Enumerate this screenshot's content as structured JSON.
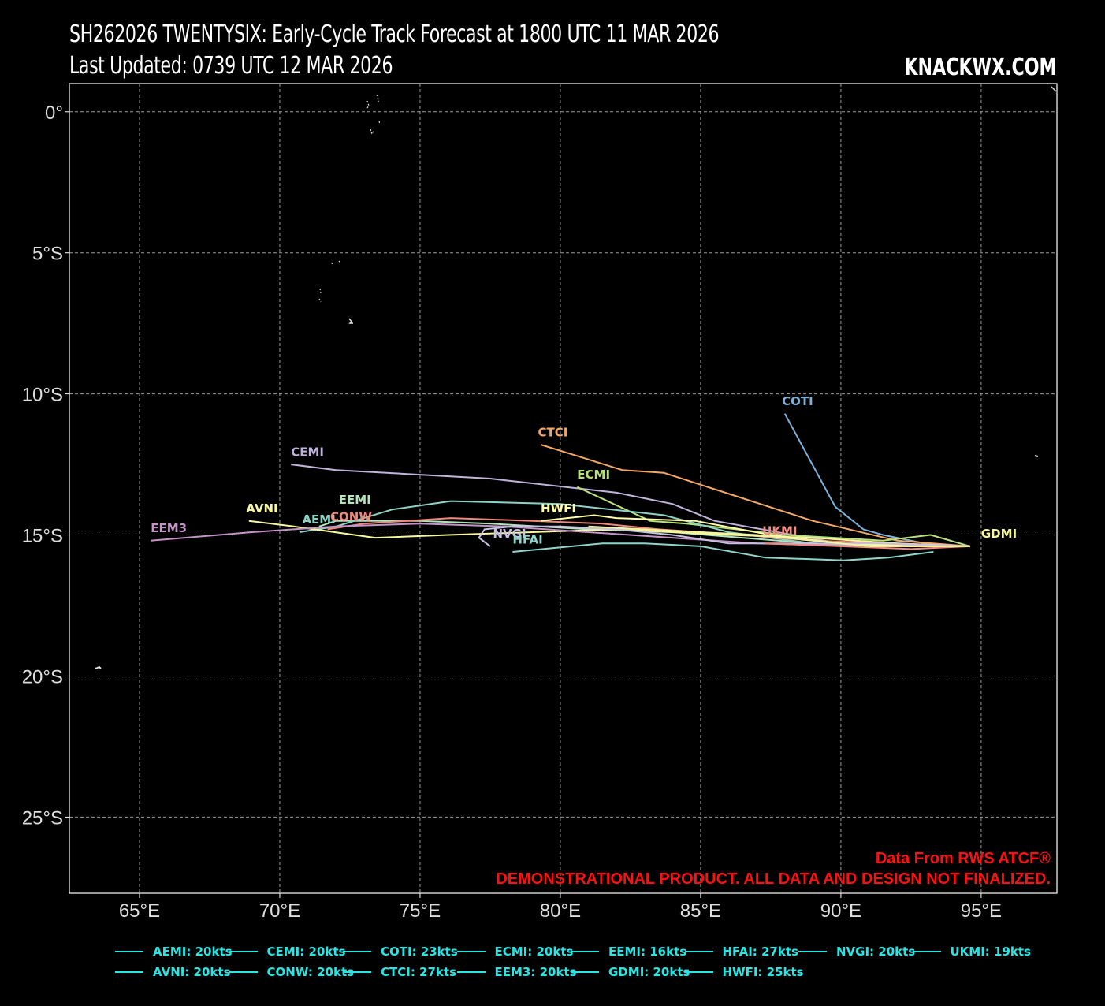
{
  "header": {
    "title_line1": "SH262026 TWENTYSIX: Early-Cycle Track Forecast at 1800 UTC 11 MAR 2026",
    "title_line2": "Last Updated: 0739 UTC 12 MAR 2026",
    "brand": "KNACKWX.COM"
  },
  "map": {
    "lon_range": [
      62.5,
      97.7
    ],
    "lat_range": [
      -27.7,
      1.0
    ],
    "lon_ticks": [
      {
        "value": 65,
        "label": "65°E"
      },
      {
        "value": 70,
        "label": "70°E"
      },
      {
        "value": 75,
        "label": "75°E"
      },
      {
        "value": 80,
        "label": "80°E"
      },
      {
        "value": 85,
        "label": "85°E"
      },
      {
        "value": 90,
        "label": "90°E"
      },
      {
        "value": 95,
        "label": "95°E"
      }
    ],
    "lat_ticks": [
      {
        "value": 0,
        "label": "0°"
      },
      {
        "value": -5,
        "label": "5°S"
      },
      {
        "value": -10,
        "label": "10°S"
      },
      {
        "value": -15,
        "label": "15°S"
      },
      {
        "value": -20,
        "label": "20°S"
      },
      {
        "value": -25,
        "label": "25°S"
      }
    ],
    "grid": true
  },
  "chart_data": {
    "type": "scatter",
    "title": "SH262026 TWENTYSIX: Early-Cycle Track Forecast at 1800 UTC 11 MAR 2026",
    "xlim": [
      62.5,
      97.7
    ],
    "ylim": [
      -27.7,
      1.0
    ],
    "series": [
      {
        "name": "COTI",
        "color": "#7fb0d8",
        "lon": [
          94.6,
          93.0,
          91.5,
          90.8,
          89.8,
          88.0
        ],
        "lat": [
          -15.4,
          -15.3,
          -15.0,
          -14.8,
          -14.0,
          -10.7
        ]
      },
      {
        "name": "CTCI",
        "color": "#f4a862",
        "lon": [
          94.6,
          92.0,
          89.0,
          86.5,
          83.7,
          82.2,
          80.6,
          79.3
        ],
        "lat": [
          -15.4,
          -15.2,
          -14.5,
          -13.7,
          -12.8,
          -12.7,
          -12.2,
          -11.8
        ]
      },
      {
        "name": "CEMI",
        "color": "#c0b4dc",
        "lon": [
          94.6,
          90.0,
          85.5,
          84.0,
          82.0,
          77.5,
          72.0,
          70.4
        ],
        "lat": [
          -15.4,
          -15.3,
          -14.5,
          -13.9,
          -13.5,
          -13.0,
          -12.7,
          -12.5
        ]
      },
      {
        "name": "ECMI",
        "color": "#b8e07c",
        "lon": [
          94.6,
          93.2,
          91.5,
          88.0,
          84.5,
          83.2,
          80.6
        ],
        "lat": [
          -15.4,
          -15.0,
          -15.2,
          -15.0,
          -14.6,
          -14.5,
          -13.3
        ]
      },
      {
        "name": "EEMI",
        "color": "#b2e5bc",
        "lon": [
          94.6,
          92.0,
          89.0,
          86.5,
          84.0,
          81.0,
          77.5,
          75.0,
          72.0,
          71.4
        ],
        "lat": [
          -15.4,
          -15.4,
          -15.3,
          -15.1,
          -14.9,
          -14.8,
          -14.6,
          -14.5,
          -14.5,
          -14.7
        ]
      },
      {
        "name": "AEMI",
        "color": "#8cd3c7",
        "lon": [
          94.6,
          92.0,
          89.0,
          86.0,
          83.7,
          80.0,
          76.1,
          74.0,
          72.0,
          70.7
        ],
        "lat": [
          -15.4,
          -15.4,
          -15.3,
          -14.9,
          -14.3,
          -13.9,
          -13.8,
          -14.1,
          -14.7,
          -14.9
        ]
      },
      {
        "name": "CONW",
        "color": "#f2877a",
        "lon": [
          94.6,
          92.0,
          89.0,
          86.5,
          83.5,
          81.5,
          79.0,
          76.1,
          73.0,
          71.7
        ],
        "lat": [
          -15.4,
          -15.3,
          -15.2,
          -15.0,
          -14.8,
          -14.6,
          -14.5,
          -14.4,
          -14.6,
          -14.8
        ]
      },
      {
        "name": "AVNI",
        "color": "#f6f79e",
        "lon": [
          94.6,
          92.0,
          89.0,
          86.0,
          84.0,
          82.0,
          79.0,
          76.0,
          73.4,
          70.5,
          68.9
        ],
        "lat": [
          -15.4,
          -15.3,
          -15.1,
          -15.0,
          -14.9,
          -14.8,
          -14.9,
          -15.0,
          -15.1,
          -14.7,
          -14.5
        ]
      },
      {
        "name": "EEM3",
        "color": "#c494c6",
        "lon": [
          94.6,
          91.0,
          87.0,
          84.0,
          81.0,
          78.0,
          75.0,
          72.0,
          69.0,
          65.4
        ],
        "lat": [
          -15.4,
          -15.4,
          -15.3,
          -15.1,
          -14.9,
          -14.7,
          -14.6,
          -14.7,
          -14.9,
          -15.2
        ]
      },
      {
        "name": "HWFI",
        "color": "#fffea6",
        "lon": [
          94.6,
          92.5,
          90.0,
          87.5,
          84.8,
          82.0,
          81.2,
          79.3
        ],
        "lat": [
          -15.4,
          -15.4,
          -15.3,
          -15.0,
          -14.5,
          -14.4,
          -14.3,
          -14.5
        ]
      },
      {
        "name": "NVGI",
        "color": "#c9c1e3",
        "lon": [
          94.6,
          91.5,
          88.5,
          86.0,
          84.0,
          82.0,
          80.0,
          78.3,
          77.3,
          77.1,
          77.5
        ],
        "lat": [
          -15.4,
          -15.3,
          -15.3,
          -15.3,
          -15.0,
          -14.8,
          -14.7,
          -14.7,
          -14.8,
          -15.1,
          -15.4
        ]
      },
      {
        "name": "HFAI",
        "color": "#8ed6cc",
        "lon": [
          93.3,
          91.7,
          90.1,
          87.3,
          85.0,
          83.0,
          81.5,
          78.3
        ],
        "lat": [
          -15.6,
          -15.8,
          -15.9,
          -15.8,
          -15.4,
          -15.3,
          -15.3,
          -15.6
        ]
      },
      {
        "name": "UKMI",
        "color": "#f58a7e",
        "lon": [
          94.6,
          92.5,
          90.0,
          87.3
        ],
        "lat": [
          -15.4,
          -15.5,
          -15.4,
          -15.3
        ]
      },
      {
        "name": "GDMI",
        "color": "#f4f59e",
        "lon": [
          94.6,
          93.0,
          91.0,
          89.0,
          87.0,
          85.0,
          83.0,
          81.0
        ],
        "lat": [
          -15.4,
          -15.4,
          -15.4,
          -15.2,
          -15.0,
          -14.9,
          -14.8,
          -14.7
        ]
      }
    ]
  },
  "track_labels": [
    {
      "text": "COTI",
      "lon": 87.9,
      "lat": -10.4,
      "color": "#7fb0d8"
    },
    {
      "text": "CTCI",
      "lon": 79.2,
      "lat": -11.5,
      "color": "#f4a862"
    },
    {
      "text": "CEMI",
      "lon": 70.4,
      "lat": -12.2,
      "color": "#c0b4dc"
    },
    {
      "text": "ECMI",
      "lon": 80.6,
      "lat": -13.0,
      "color": "#b8e07c"
    },
    {
      "text": "EEMI",
      "lon": 72.1,
      "lat": -13.9,
      "color": "#b2e5bc"
    },
    {
      "text": "AVNI",
      "lon": 68.8,
      "lat": -14.2,
      "color": "#f6f79e"
    },
    {
      "text": "HWFI",
      "lon": 79.3,
      "lat": -14.2,
      "color": "#fffea6"
    },
    {
      "text": "AEMI",
      "lon": 70.8,
      "lat": -14.6,
      "color": "#8cd3c7"
    },
    {
      "text": "CONW",
      "lon": 71.8,
      "lat": -14.5,
      "color": "#f2877a"
    },
    {
      "text": "EEM3",
      "lon": 65.4,
      "lat": -14.9,
      "color": "#c494c6"
    },
    {
      "text": "NVGI",
      "lon": 77.6,
      "lat": -15.1,
      "color": "#c9c1e3"
    },
    {
      "text": "HFAI",
      "lon": 78.3,
      "lat": -15.3,
      "color": "#8ed6cc"
    },
    {
      "text": "UKMI",
      "lon": 87.2,
      "lat": -15.0,
      "color": "#f58a7e"
    },
    {
      "text": "GDMI",
      "lon": 95.0,
      "lat": -15.1,
      "color": "#f4f59e"
    }
  ],
  "credits": {
    "line1": "Data From RWS ATCF®",
    "line2": "DEMONSTRATIONAL PRODUCT. ALL DATA AND DESIGN NOT FINALIZED."
  },
  "legend": [
    "AEMI: 20kts",
    "CEMI: 20kts",
    "COTI: 23kts",
    "ECMI: 20kts",
    "EEMI: 16kts",
    "HFAI: 27kts",
    "NVGI: 20kts",
    "UKMI: 19kts",
    "AVNI: 20kts",
    "CONW: 20kts",
    "CTCI: 27kts",
    "EEM3: 20kts",
    "GDMI: 20kts",
    "HWFI: 25kts"
  ],
  "colors": {
    "background": "#000000",
    "grid": "#9a9a9a",
    "credit": "#ff1010",
    "legend": "#26e6e6"
  }
}
